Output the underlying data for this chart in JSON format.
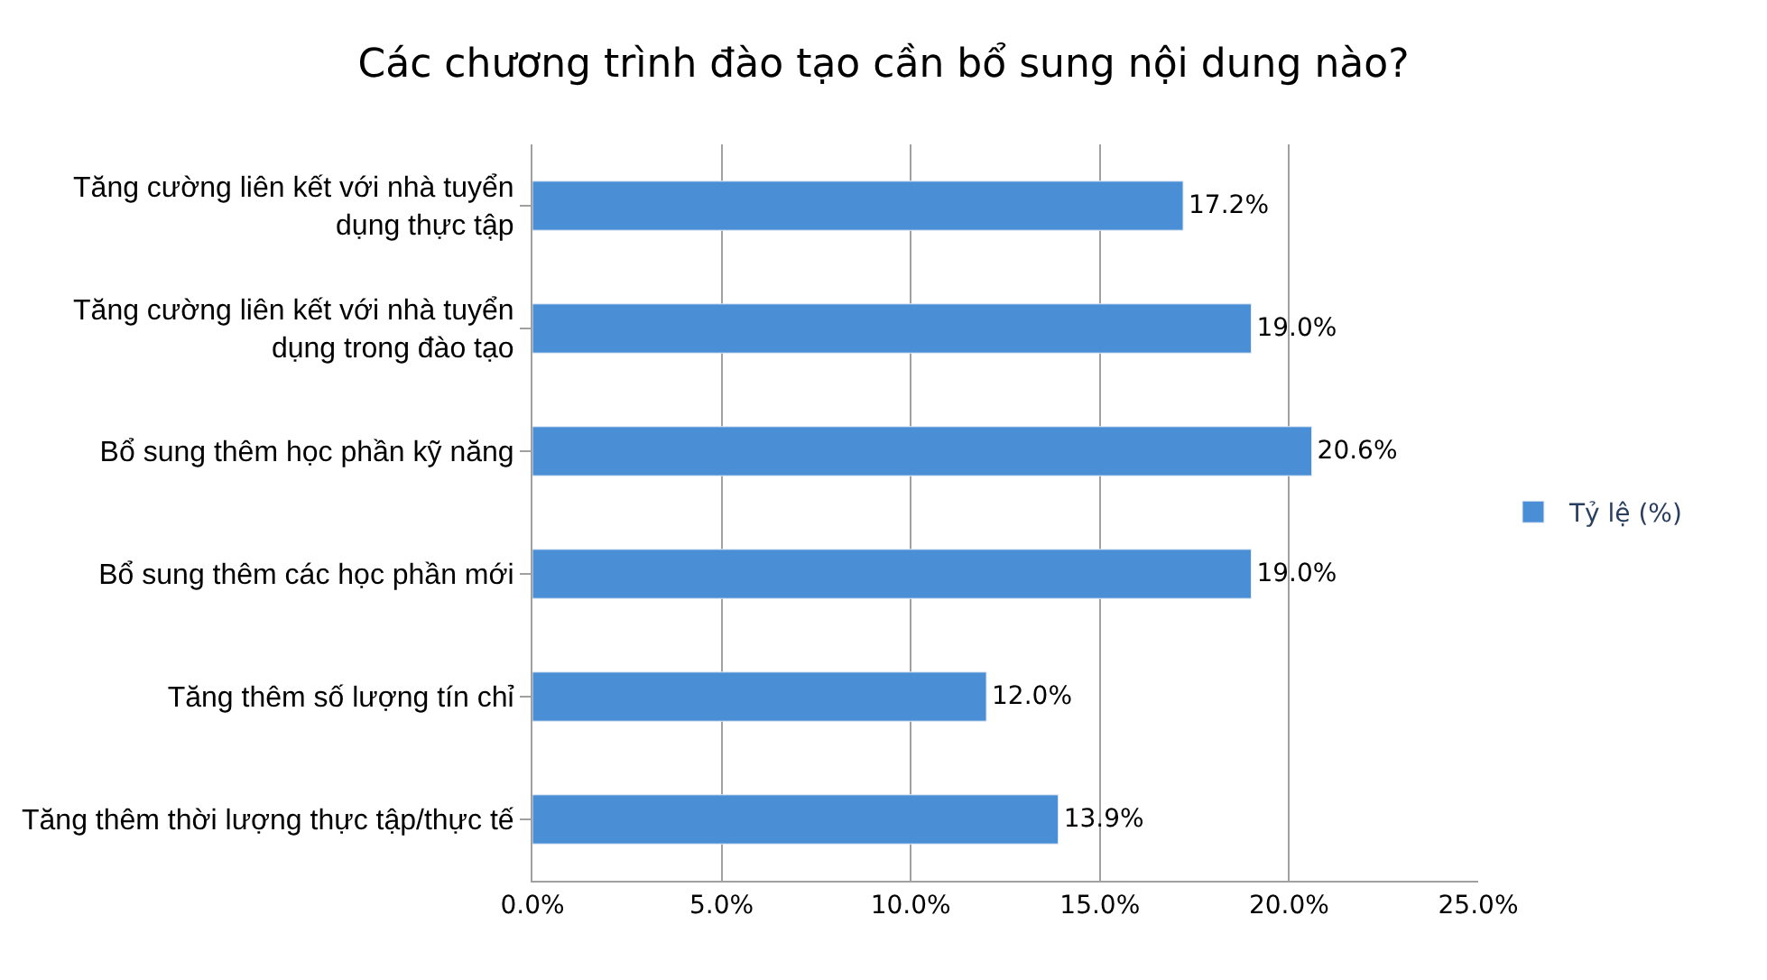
{
  "chart_data": {
    "type": "bar",
    "orientation": "horizontal",
    "title": "Các chương trình đào tạo cần bổ sung nội dung nào?",
    "categories": [
      "Tăng cường liên kết với nhà tuyển dụng thực tập",
      "Tăng cường liên kết với nhà tuyển dụng trong đào tạo",
      "Bổ sung thêm học phần kỹ năng",
      "Bổ sung thêm các học phần mới",
      "Tăng thêm số lượng tín chỉ",
      "Tăng thêm thời lượng thực tập/thực tế"
    ],
    "series": [
      {
        "name": "Tỷ lệ (%)",
        "color": "#4a8fd6",
        "values": [
          17.2,
          19.0,
          20.6,
          19.0,
          12.0,
          13.9
        ],
        "value_labels": [
          "17.2%",
          "19.0%",
          "20.6%",
          "19.0%",
          "12.0%",
          "13.9%"
        ]
      }
    ],
    "xlim": [
      0,
      25
    ],
    "xticks": [
      {
        "value": 0,
        "label": "0.0%"
      },
      {
        "value": 5,
        "label": "5.0%"
      },
      {
        "value": 10,
        "label": "10.0%"
      },
      {
        "value": 15,
        "label": "15.0%"
      },
      {
        "value": 20,
        "label": "20.0%"
      },
      {
        "value": 25,
        "label": "25.0%"
      }
    ],
    "grid": "x",
    "legend": "right"
  }
}
